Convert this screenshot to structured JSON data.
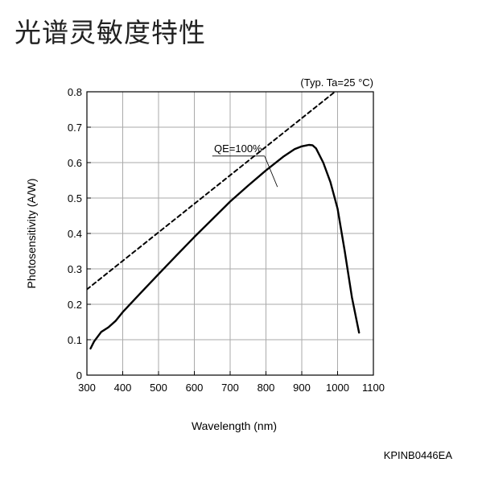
{
  "page_title": "光谱灵敏度特性",
  "figure_code": "KPINB0446EA",
  "chart_data": {
    "type": "line",
    "note": "(Typ. Ta=25 °C)",
    "xlabel": "Wavelength (nm)",
    "ylabel": "Photosensitivity (A/W)",
    "xlim": [
      300,
      1100
    ],
    "ylim": [
      0,
      0.8
    ],
    "x_ticks": [
      300,
      400,
      500,
      600,
      700,
      800,
      900,
      1000,
      1100
    ],
    "y_ticks": [
      0,
      0.1,
      0.2,
      0.3,
      0.4,
      0.5,
      0.6,
      0.7,
      0.8
    ],
    "x_tick_labels": [
      "300",
      "400",
      "500",
      "600",
      "700",
      "800",
      "900",
      "1000",
      "1100"
    ],
    "y_tick_labels": [
      "0",
      "0.1",
      "0.2",
      "0.3",
      "0.4",
      "0.5",
      "0.6",
      "0.7",
      "0.8"
    ],
    "grid": true,
    "series": [
      {
        "style": "solid",
        "x": [
          310,
          320,
          340,
          360,
          380,
          400,
          450,
          500,
          550,
          600,
          650,
          700,
          750,
          800,
          850,
          880,
          900,
          920,
          930,
          940,
          960,
          980,
          1000,
          1020,
          1040,
          1060
        ],
        "y": [
          0.075,
          0.095,
          0.122,
          0.135,
          0.153,
          0.178,
          0.232,
          0.285,
          0.338,
          0.39,
          0.44,
          0.49,
          0.535,
          0.578,
          0.618,
          0.638,
          0.646,
          0.65,
          0.649,
          0.64,
          0.6,
          0.545,
          0.47,
          0.35,
          0.22,
          0.12
        ]
      },
      {
        "name": "QE=100%",
        "style": "dashed",
        "x": [
          300,
          990
        ],
        "y": [
          0.242,
          0.798
        ]
      }
    ],
    "annotations": [
      {
        "text": "QE=100%",
        "x": 740,
        "y": 0.63,
        "target_x": 850,
        "target_y": 0.545
      }
    ]
  }
}
